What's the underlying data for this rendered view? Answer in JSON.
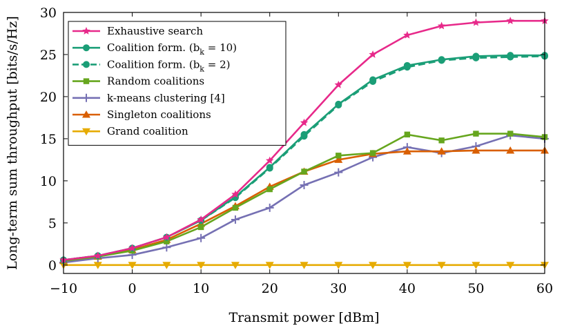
{
  "chart_data": {
    "type": "line",
    "xlabel": "Transmit power [dBm]",
    "ylabel": "Long-term sum throughput [bits/s/Hz]",
    "xlim": [
      -10,
      60
    ],
    "ylim": [
      -1,
      30
    ],
    "xticks": [
      -10,
      0,
      10,
      20,
      30,
      40,
      50,
      60
    ],
    "xtick_labels": [
      "−10",
      "0",
      "10",
      "20",
      "30",
      "40",
      "50",
      "60"
    ],
    "yticks": [
      0,
      5,
      10,
      15,
      20,
      25,
      30
    ],
    "ytick_labels": [
      "0",
      "5",
      "10",
      "15",
      "20",
      "25",
      "30"
    ],
    "x": [
      -10,
      -5,
      0,
      5,
      10,
      15,
      20,
      25,
      30,
      35,
      40,
      45,
      50,
      55,
      60
    ],
    "legend_position": "top-left",
    "series": [
      {
        "name": "Exhaustive search",
        "legend_label": "Exhaustive search",
        "color": "#e7298a",
        "marker": "star",
        "dash": "solid",
        "values": [
          0.6,
          1.1,
          2.0,
          3.3,
          5.4,
          8.4,
          12.4,
          16.9,
          21.4,
          25.0,
          27.3,
          28.4,
          28.8,
          29.0,
          29.0
        ]
      },
      {
        "name": "Coalition form. (b_k = 10)",
        "legend_label": "Coalition form. (b",
        "legend_sub": "k",
        "legend_suffix": " = 10)",
        "color": "#1b9e77",
        "marker": "circle",
        "dash": "solid",
        "values": [
          0.6,
          1.1,
          2.0,
          3.3,
          5.3,
          8.1,
          11.6,
          15.5,
          19.1,
          22.0,
          23.7,
          24.4,
          24.8,
          24.9,
          24.9
        ]
      },
      {
        "name": "Coalition form. (b_k = 2)",
        "legend_label": "Coalition form. (b",
        "legend_sub": "k",
        "legend_suffix": " = 2)",
        "color": "#1b9e77",
        "marker": "circle",
        "dash": "dashed",
        "values": [
          0.6,
          1.1,
          2.0,
          3.3,
          5.3,
          8.0,
          11.5,
          15.3,
          19.0,
          21.8,
          23.5,
          24.3,
          24.6,
          24.7,
          24.8
        ]
      },
      {
        "name": "Random coalitions",
        "legend_label": "Random coalitions",
        "color": "#66a61e",
        "marker": "square",
        "dash": "solid",
        "values": [
          0.5,
          1.0,
          1.7,
          2.8,
          4.5,
          6.8,
          9.0,
          11.1,
          13.0,
          13.3,
          15.5,
          14.8,
          15.6,
          15.6,
          15.2
        ]
      },
      {
        "name": "k-means clustering [4]",
        "legend_label": "k-means clustering [4]",
        "color": "#7570b3",
        "marker": "plus",
        "dash": "solid",
        "values": [
          0.3,
          0.8,
          1.2,
          2.1,
          3.2,
          5.4,
          6.8,
          9.5,
          11.0,
          12.8,
          14.0,
          13.3,
          14.1,
          15.4,
          15.0
        ]
      },
      {
        "name": "Singleton coalitions",
        "legend_label": "Singleton coalitions",
        "color": "#d95f02",
        "marker": "triangle-up",
        "dash": "solid",
        "values": [
          0.5,
          1.0,
          1.8,
          3.0,
          4.9,
          7.0,
          9.3,
          11.1,
          12.5,
          13.2,
          13.5,
          13.5,
          13.6,
          13.6,
          13.6
        ]
      },
      {
        "name": "Grand coalition",
        "legend_label": "Grand coalition",
        "color": "#e6ab02",
        "marker": "triangle-down",
        "dash": "solid",
        "values": [
          0,
          0,
          0,
          0,
          0,
          0,
          0,
          0,
          0,
          0,
          0,
          0,
          0,
          0,
          0
        ]
      }
    ]
  }
}
